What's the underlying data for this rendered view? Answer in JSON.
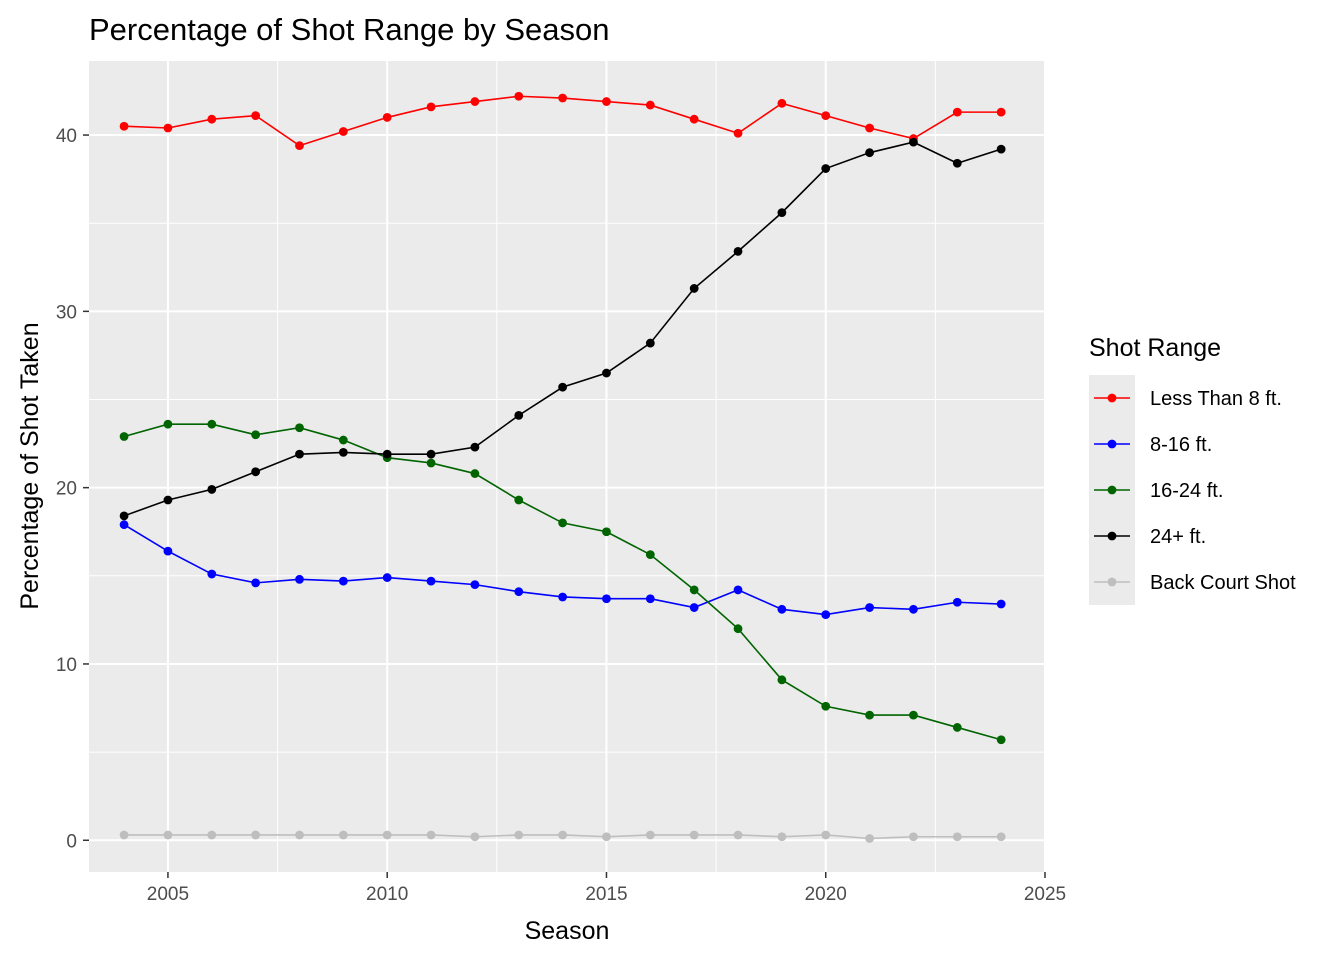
{
  "chart_data": {
    "type": "line",
    "title": "Percentage of Shot Range by Season",
    "xlabel": "Season",
    "ylabel": "Percentage of Shot Taken",
    "xlim": [
      2003.2,
      2025.0
    ],
    "ylim": [
      -1.8,
      44.2
    ],
    "x_ticks": [
      2005,
      2010,
      2015,
      2020,
      2025
    ],
    "y_ticks": [
      0,
      10,
      20,
      30,
      40
    ],
    "grid": true,
    "legend_position": "right",
    "legend_title": "Shot Range",
    "x": [
      2004,
      2005,
      2006,
      2007,
      2008,
      2009,
      2010,
      2011,
      2012,
      2013,
      2014,
      2015,
      2016,
      2017,
      2018,
      2019,
      2020,
      2021,
      2022,
      2023,
      2024
    ],
    "series": [
      {
        "name": "Less Than 8 ft.",
        "color": "#ff0000",
        "values": [
          40.5,
          40.4,
          40.9,
          41.1,
          39.4,
          40.2,
          41.0,
          41.6,
          41.9,
          42.2,
          42.1,
          41.9,
          41.7,
          40.9,
          40.1,
          41.8,
          41.1,
          40.4,
          39.8,
          41.3,
          41.3
        ]
      },
      {
        "name": "8-16 ft.",
        "color": "#0000ff",
        "values": [
          17.9,
          16.4,
          15.1,
          14.6,
          14.8,
          14.7,
          14.9,
          14.7,
          14.5,
          14.1,
          13.8,
          13.7,
          13.7,
          13.2,
          14.2,
          13.1,
          12.8,
          13.2,
          13.1,
          13.5,
          13.4
        ]
      },
      {
        "name": "16-24 ft.",
        "color": "#006400",
        "values": [
          22.9,
          23.6,
          23.6,
          23.0,
          23.4,
          22.7,
          21.7,
          21.4,
          20.8,
          19.3,
          18.0,
          17.5,
          16.2,
          14.2,
          12.0,
          9.1,
          7.6,
          7.1,
          7.1,
          6.4,
          5.7
        ]
      },
      {
        "name": "24+ ft.",
        "color": "#000000",
        "values": [
          18.4,
          19.3,
          19.9,
          20.9,
          21.9,
          22.0,
          21.9,
          21.9,
          22.3,
          24.1,
          25.7,
          26.5,
          28.2,
          31.3,
          33.4,
          35.6,
          38.1,
          39.0,
          39.6,
          38.4,
          39.2
        ]
      },
      {
        "name": "Back Court Shot",
        "color": "#bebebe",
        "values": [
          0.3,
          0.3,
          0.3,
          0.3,
          0.3,
          0.3,
          0.3,
          0.3,
          0.2,
          0.3,
          0.3,
          0.2,
          0.3,
          0.3,
          0.3,
          0.2,
          0.3,
          0.1,
          0.2,
          0.2,
          0.2
        ]
      }
    ]
  }
}
